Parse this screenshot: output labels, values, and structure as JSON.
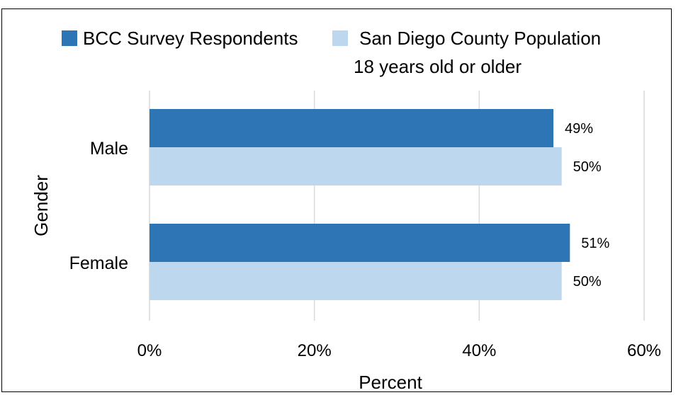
{
  "caption_fragment": "",
  "chart_data": {
    "type": "bar",
    "orientation": "horizontal",
    "categories": [
      "Male",
      "Female"
    ],
    "series": [
      {
        "name": "BCC Survey Respondents",
        "color": "#2e75b6",
        "values": [
          49,
          51
        ],
        "labels": [
          "49%",
          "51%"
        ]
      },
      {
        "name": "San Diego County Population 18 years old or older",
        "name_lines": [
          "San Diego County Population",
          "18 years old or older"
        ],
        "color": "#bdd7ee",
        "values": [
          50,
          50
        ],
        "labels": [
          "50%",
          "50%"
        ]
      }
    ],
    "xlabel": "Percent",
    "ylabel": "Gender",
    "xlim": [
      0,
      60
    ],
    "x_ticks": [
      0,
      20,
      40,
      60
    ],
    "x_tick_labels": [
      "0%",
      "20%",
      "40%",
      "60%"
    ],
    "grid": true,
    "legend_position": "top"
  }
}
